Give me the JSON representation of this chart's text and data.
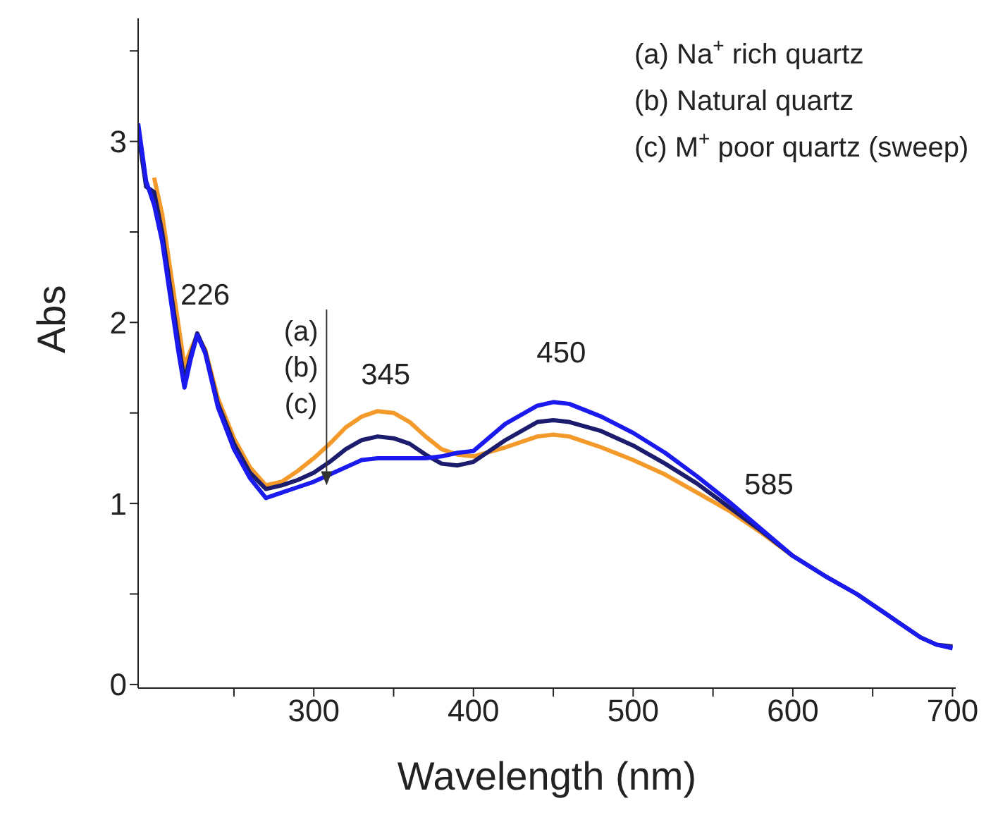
{
  "chart_data": {
    "type": "line",
    "xlabel": "Wavelength (nm)",
    "ylabel": "Abs",
    "xlim": [
      190,
      702
    ],
    "ylim": [
      -0.02,
      3.68
    ],
    "xticks": [
      {
        "value": 250,
        "label": null
      },
      300,
      {
        "value": 350,
        "label": null
      },
      400,
      {
        "value": 450,
        "label": null
      },
      500,
      {
        "value": 550,
        "label": null
      },
      600,
      {
        "value": 650,
        "label": null
      },
      700
    ],
    "yticks": [
      0,
      {
        "value": 0.5,
        "label": null
      },
      1,
      {
        "value": 1.5,
        "label": null
      },
      2,
      {
        "value": 2.5,
        "label": null
      },
      3,
      {
        "value": 3.5,
        "label": null
      }
    ],
    "x": [
      190,
      195,
      200,
      205,
      210,
      215,
      219,
      223,
      227,
      232,
      240,
      250,
      260,
      270,
      280,
      290,
      300,
      310,
      320,
      330,
      340,
      350,
      360,
      370,
      380,
      390,
      400,
      420,
      440,
      450,
      460,
      480,
      500,
      520,
      540,
      560,
      580,
      600,
      620,
      640,
      660,
      680,
      690,
      700
    ],
    "series": [
      {
        "color": "#f39a2b",
        "values": [
          null,
          null,
          2.8,
          2.6,
          2.3,
          2.0,
          1.76,
          1.85,
          1.93,
          1.85,
          1.58,
          1.36,
          1.2,
          1.1,
          1.12,
          1.18,
          1.25,
          1.33,
          1.42,
          1.48,
          1.51,
          1.5,
          1.45,
          1.37,
          1.3,
          1.27,
          1.26,
          1.31,
          1.37,
          1.38,
          1.37,
          1.31,
          1.24,
          1.16,
          1.06,
          0.96,
          0.84,
          0.71,
          null,
          null,
          null,
          null,
          null,
          null
        ]
      },
      {
        "color": "#1c1c6e",
        "values": [
          3.05,
          2.75,
          2.72,
          2.5,
          2.2,
          1.9,
          1.68,
          1.82,
          1.94,
          1.84,
          1.55,
          1.33,
          1.17,
          1.08,
          1.1,
          1.13,
          1.17,
          1.23,
          1.3,
          1.35,
          1.37,
          1.36,
          1.33,
          1.27,
          1.22,
          1.21,
          1.23,
          1.35,
          1.45,
          1.46,
          1.45,
          1.4,
          1.32,
          1.22,
          1.11,
          0.98,
          0.85,
          0.71,
          0.6,
          0.5,
          0.38,
          0.26,
          0.22,
          0.21
        ]
      },
      {
        "color": "#1a1aee",
        "values": [
          3.1,
          2.78,
          2.65,
          2.45,
          2.15,
          1.85,
          1.64,
          1.8,
          1.93,
          1.83,
          1.53,
          1.3,
          1.14,
          1.03,
          1.06,
          1.09,
          1.12,
          1.16,
          1.2,
          1.24,
          1.25,
          1.25,
          1.25,
          1.25,
          1.26,
          1.28,
          1.29,
          1.44,
          1.54,
          1.56,
          1.55,
          1.48,
          1.39,
          1.28,
          1.15,
          1.01,
          0.86,
          0.71,
          0.6,
          0.5,
          0.38,
          0.26,
          0.22,
          0.2
        ]
      }
    ],
    "annotations": [
      "(a) Na$^{+}$ rich quartz",
      "(b) Natural quartz",
      "(c) M$^{+}$ poor quartz (sweep)",
      "226",
      "345",
      "450",
      "585",
      {
        "text": "(a)",
        "x": 308,
        "y": 1.1
      },
      "(b)",
      "(c)"
    ],
    "grid": false,
    "legend": false,
    "marker": "none",
    "line_style": "solid"
  }
}
